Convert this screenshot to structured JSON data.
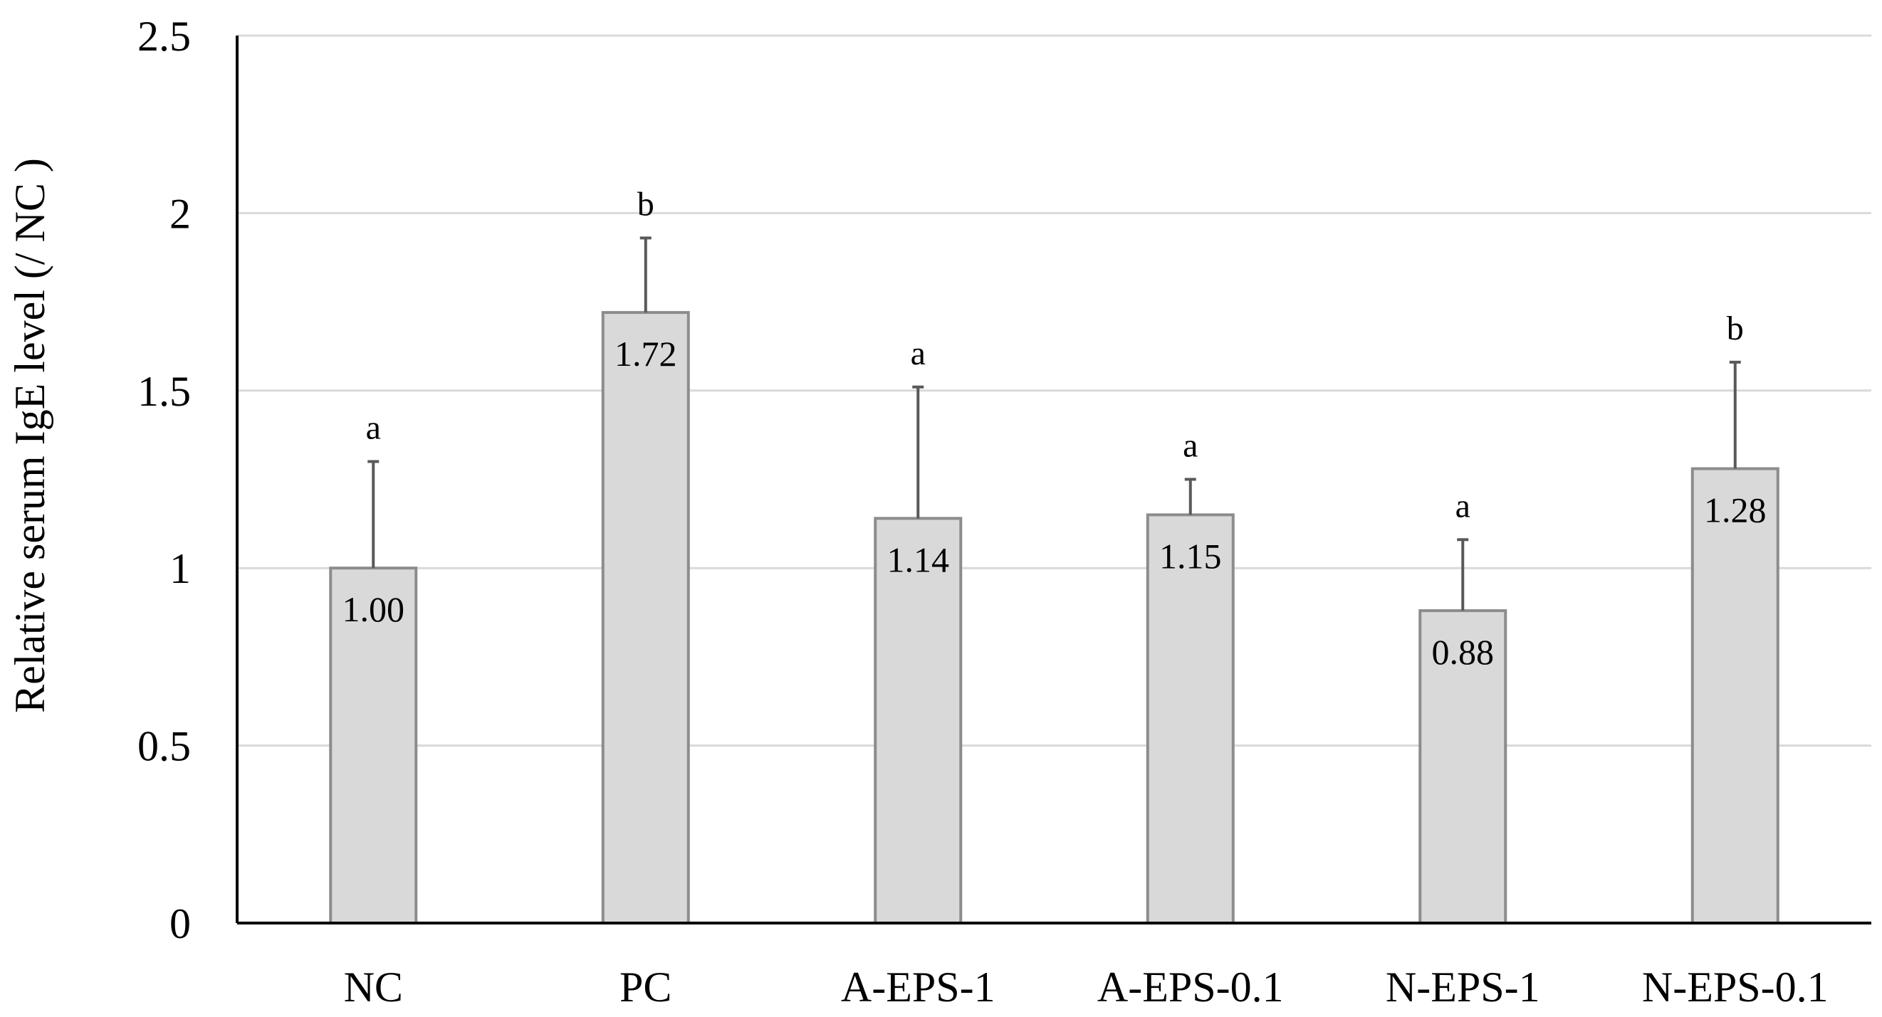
{
  "chart_data": {
    "type": "bar",
    "title": "",
    "xlabel": "",
    "ylabel": "Relative serum IgE level (/ NC )",
    "ylim": [
      0,
      2.5
    ],
    "yticks": [
      0,
      0.5,
      1,
      1.5,
      2,
      2.5
    ],
    "ytick_labels": [
      "0",
      "0.5",
      "1",
      "1.5",
      "2",
      "2.5"
    ],
    "categories": [
      "NC",
      "PC",
      "A-EPS-1",
      "A-EPS-0.1",
      "N-EPS-1",
      "N-EPS-0.1"
    ],
    "values": [
      1.0,
      1.72,
      1.14,
      1.15,
      0.88,
      1.28
    ],
    "value_labels": [
      "1.00",
      "1.72",
      "1.14",
      "1.15",
      "0.88",
      "1.28"
    ],
    "error_upper": [
      1.3,
      1.93,
      1.51,
      1.25,
      1.08,
      1.58
    ],
    "significance_letters": [
      "a",
      "b",
      "a",
      "a",
      "a",
      "b"
    ],
    "grid": true,
    "legend": "none",
    "colors": {
      "bar_fill": "#d9d9d9",
      "bar_stroke": "#8c8c8c",
      "error_bar": "#595959",
      "gridline": "#d9d9d9",
      "axis": "#000000",
      "text": "#000000"
    }
  }
}
